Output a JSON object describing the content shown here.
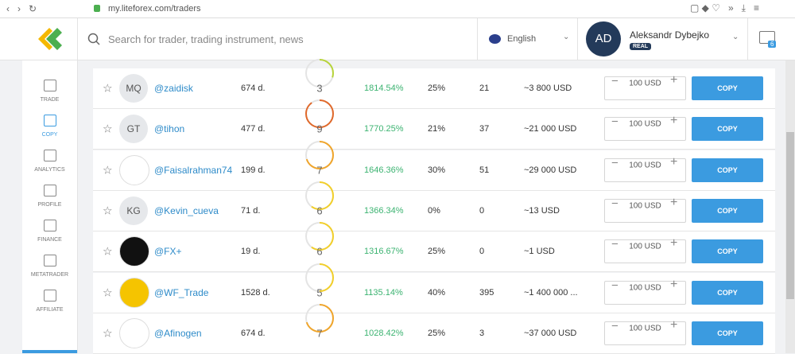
{
  "browser": {
    "url": "my.liteforex.com/traders"
  },
  "header": {
    "search_placeholder": "Search for trader, trading instrument, news",
    "language": "English",
    "user": {
      "initials": "AD",
      "name": "Aleksandr Dybejko",
      "account": "REAL"
    },
    "messages": "6"
  },
  "sidebar": [
    "TRADE",
    "COPY",
    "ANALYTICS",
    "PROFILE",
    "FINANCE",
    "METATRADER",
    "AFFILIATE"
  ],
  "rows": [
    {
      "avatar": "MQ",
      "name": "@zaidisk",
      "days": "674 d.",
      "risk": 3,
      "gain": "1814.54%",
      "pct": "25%",
      "count": "21",
      "equity": "~3 800 USD",
      "amount": "100 USD",
      "action": "COPY"
    },
    {
      "avatar": "GT",
      "name": "@tihon",
      "days": "477 d.",
      "risk": 9,
      "gain": "1770.25%",
      "pct": "21%",
      "count": "37",
      "equity": "~21 000 USD",
      "amount": "100 USD",
      "action": "COPY"
    },
    {
      "name": "@Faisalrahman74",
      "days": "199 d.",
      "risk": 7,
      "gain": "1646.36%",
      "pct": "30%",
      "count": "51",
      "equity": "~29 000 USD",
      "amount": "100 USD",
      "action": "COPY"
    },
    {
      "avatar": "KG",
      "name": "@Kevin_cueva",
      "days": "71 d.",
      "risk": 6,
      "gain": "1366.34%",
      "pct": "0%",
      "count": "0",
      "equity": "~13 USD",
      "amount": "100 USD",
      "action": "COPY"
    },
    {
      "name": "@FX+",
      "days": "19 d.",
      "risk": 6,
      "gain": "1316.67%",
      "pct": "25%",
      "count": "0",
      "equity": "~1 USD",
      "amount": "100 USD",
      "action": "COPY"
    },
    {
      "name": "@WF_Trade",
      "days": "1528 d.",
      "risk": 5,
      "gain": "1135.14%",
      "pct": "40%",
      "count": "395",
      "equity": "~1 400 000 ...",
      "amount": "100 USD",
      "action": "COPY"
    },
    {
      "name": "@Afinogen",
      "days": "674 d.",
      "risk": 7,
      "gain": "1028.42%",
      "pct": "25%",
      "count": "3",
      "equity": "~37 000 USD",
      "amount": "100 USD",
      "action": "COPY"
    }
  ]
}
